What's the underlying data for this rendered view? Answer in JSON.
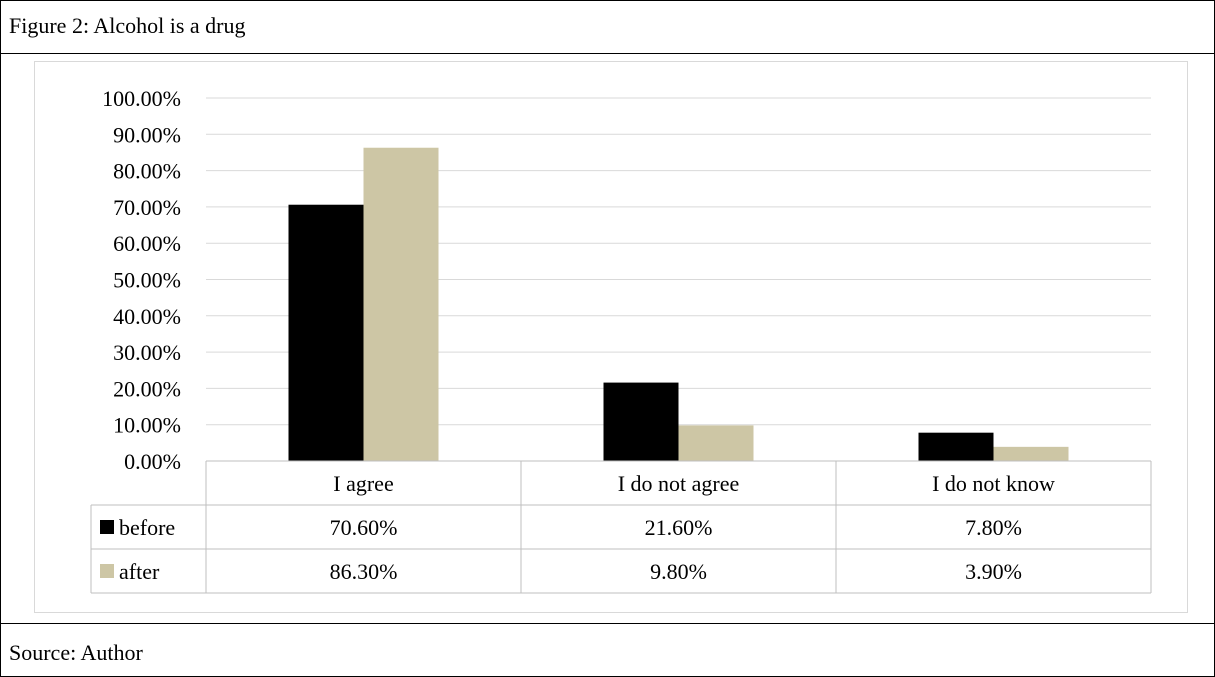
{
  "figure": {
    "title": "Figure 2: Alcohol is a drug",
    "source": "Source: Author"
  },
  "chart_data": {
    "type": "bar",
    "categories": [
      "I agree",
      "I do not agree",
      "I do not know"
    ],
    "series": [
      {
        "name": "before",
        "values": [
          70.6,
          21.6,
          7.8
        ],
        "labels": [
          "70.60%",
          "21.60%",
          "7.80%"
        ],
        "color": "#000000"
      },
      {
        "name": "after",
        "values": [
          86.3,
          9.8,
          3.9
        ],
        "labels": [
          "86.30%",
          "9.80%",
          "3.90%"
        ],
        "color": "#cdc6a5"
      }
    ],
    "y_ticks": [
      "0.00%",
      "10.00%",
      "20.00%",
      "30.00%",
      "40.00%",
      "50.00%",
      "60.00%",
      "70.00%",
      "80.00%",
      "90.00%",
      "100.00%"
    ],
    "ylim": [
      0,
      100
    ],
    "grid": true,
    "legend": "data-table"
  }
}
